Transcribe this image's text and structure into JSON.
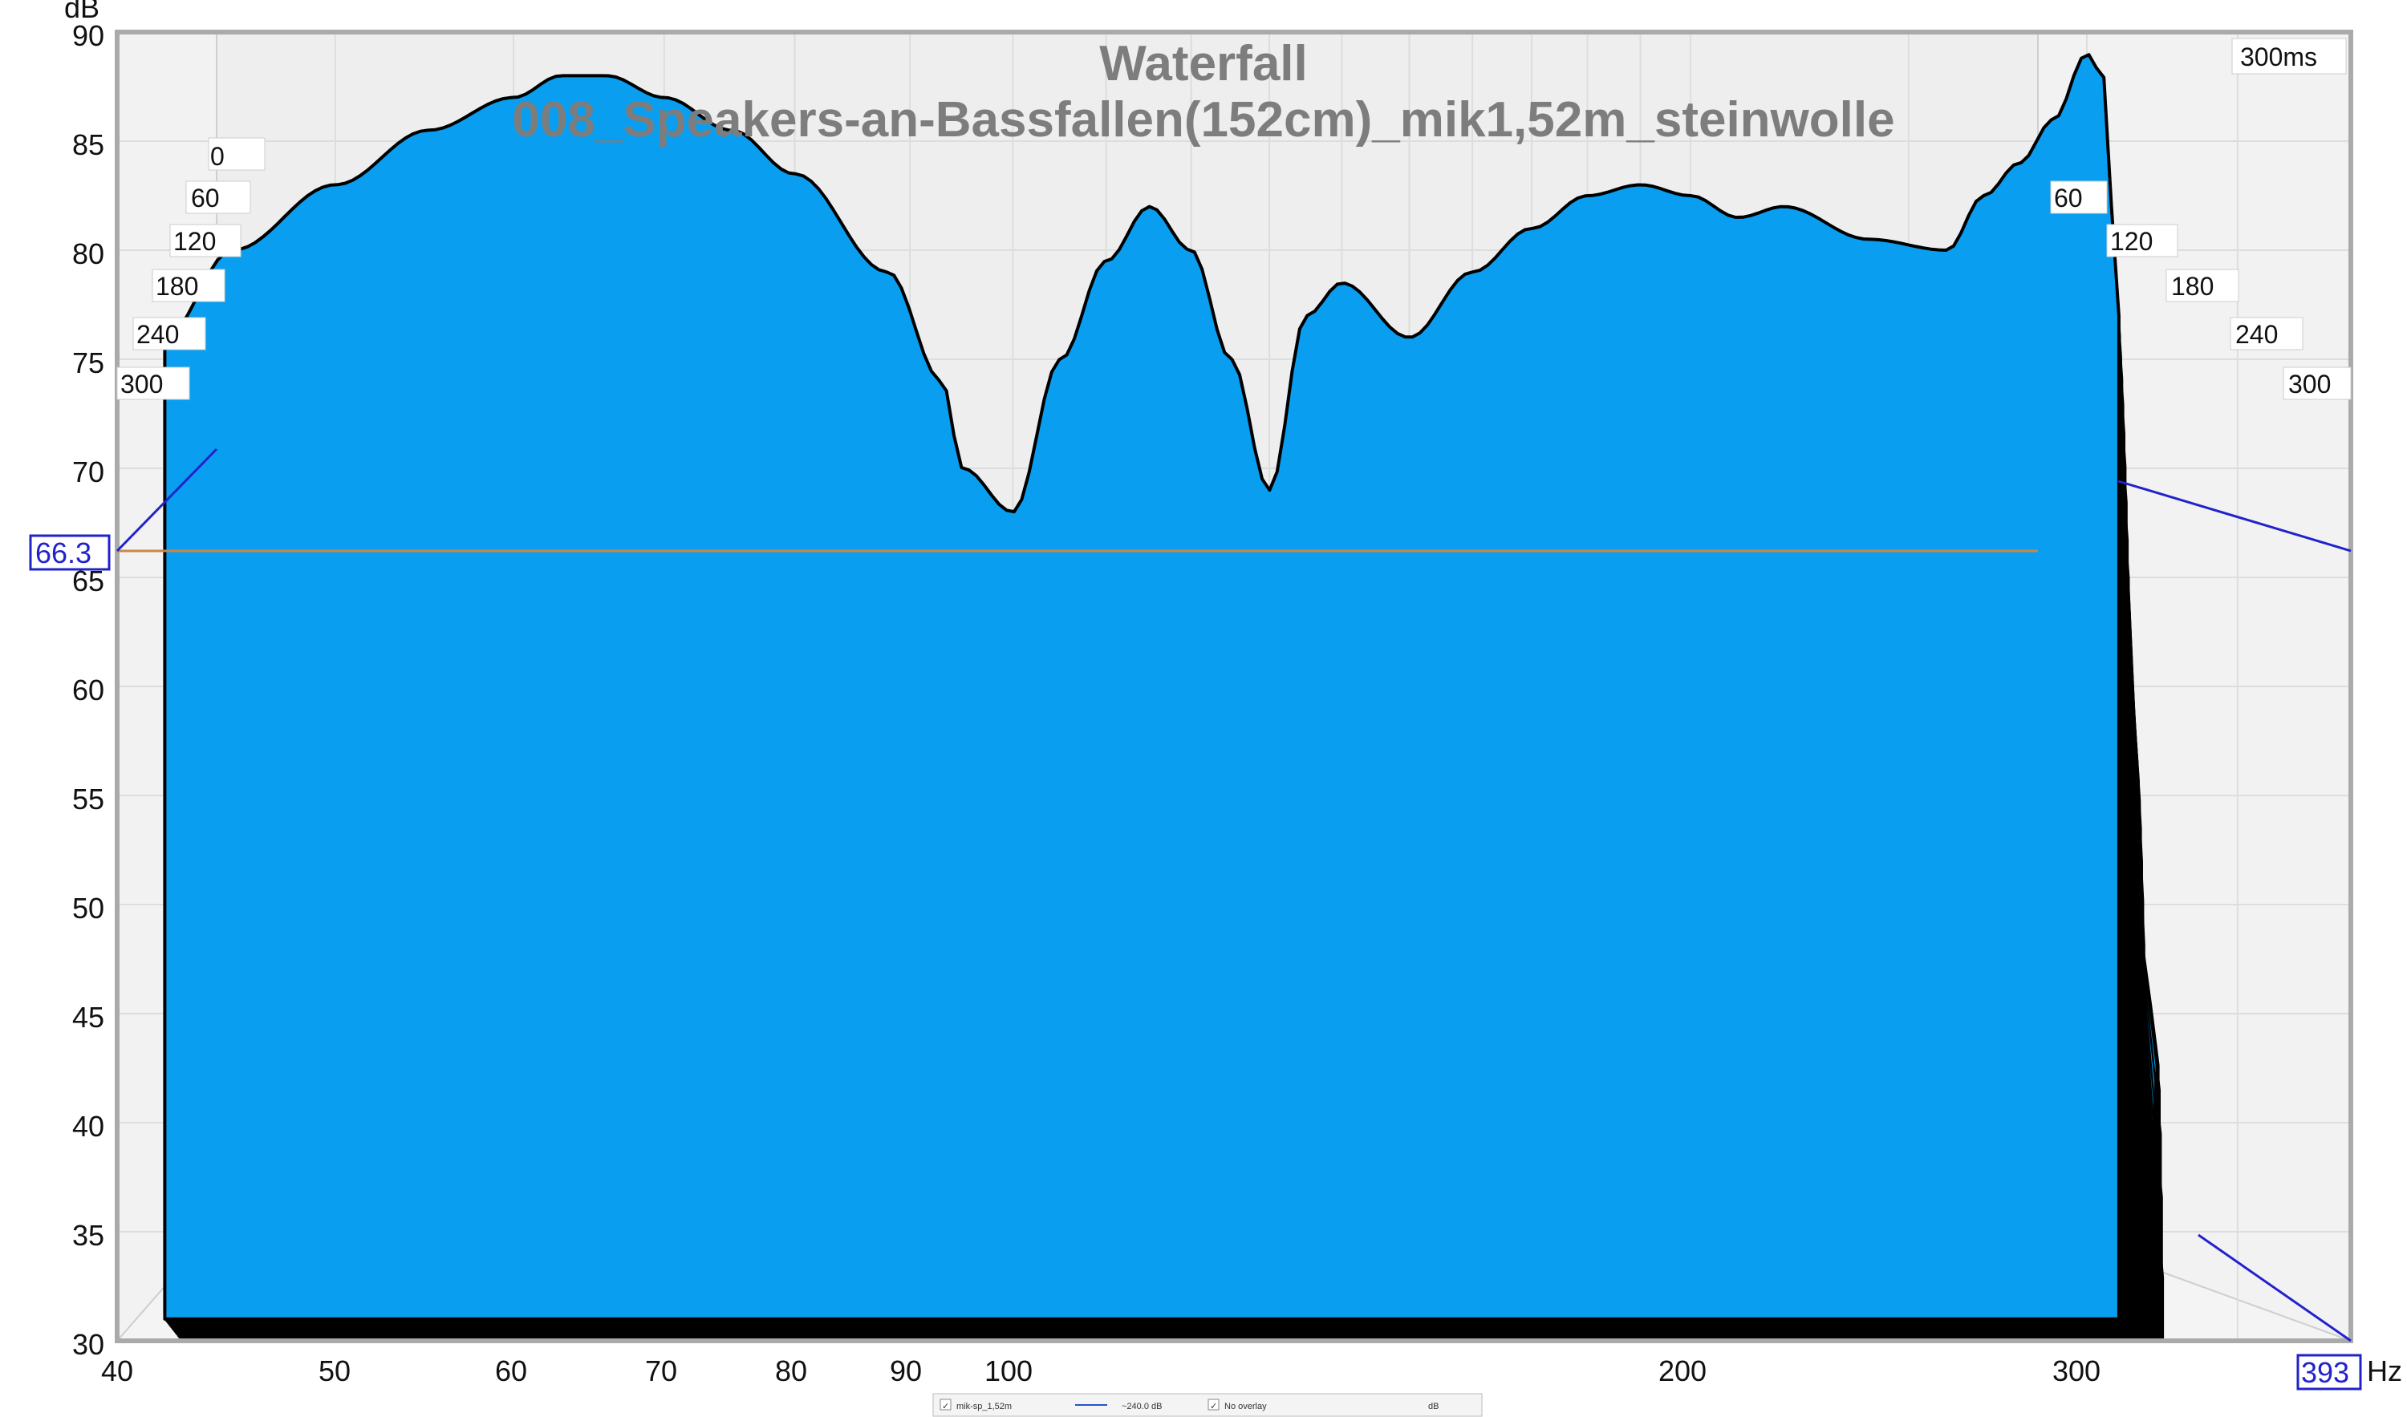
{
  "chart_data": {
    "type": "waterfall",
    "title": "Waterfall",
    "subtitle": "008_Speakers-an-Bassfallen(152cm)_mik1,52m_steinwolle",
    "ylabel": "dB",
    "xlabel": "Hz",
    "ylim": [
      30,
      90
    ],
    "xlim": [
      40,
      393
    ],
    "x_scale": "log",
    "y_ticks": [
      "90",
      "85",
      "80",
      "75",
      "70",
      "65",
      "60",
      "55",
      "50",
      "45",
      "40",
      "35",
      "30"
    ],
    "x_ticks": [
      "40",
      "50",
      "60",
      "70",
      "80",
      "90",
      "100",
      "200",
      "300"
    ],
    "time_axis_label": "300ms",
    "time_ticks_left": [
      "0",
      "60",
      "120",
      "180",
      "240",
      "300"
    ],
    "time_ticks_right": [
      "60",
      "120",
      "180",
      "240",
      "300"
    ],
    "cursor": {
      "db": "66.3",
      "hz": "393"
    },
    "colors": {
      "fill": "#0a9ef0",
      "slice_line": "#000000",
      "cursor": "#2222cc",
      "hline": "#c9874a"
    },
    "front_slice": {
      "time_ms": 0,
      "freq_hz": [
        42,
        45,
        50,
        55,
        60,
        63,
        66,
        70,
        75,
        80,
        88,
        93,
        95,
        100,
        105,
        110,
        115,
        120,
        125,
        130,
        135,
        140,
        150,
        160,
        170,
        180,
        190,
        200,
        210,
        220,
        240,
        260,
        270,
        280,
        290,
        300,
        305,
        310
      ],
      "db": [
        76,
        80,
        83,
        85.5,
        87,
        88,
        88,
        87,
        85.5,
        83.5,
        79,
        74,
        70,
        68,
        75,
        79.5,
        82,
        80,
        75,
        69,
        77,
        78.5,
        76,
        79,
        81,
        82.5,
        83,
        82.5,
        81.5,
        82,
        80.5,
        80,
        82.5,
        84,
        86,
        89,
        88,
        77
      ]
    },
    "decay_slices": 40
  },
  "legend": {
    "checkbox1": "✓",
    "trace_name": "mik-sp_1,52m",
    "trace_value": "~240.0 dB",
    "checkbox2": "✓",
    "overlay": "No overlay",
    "unit": "dB"
  }
}
